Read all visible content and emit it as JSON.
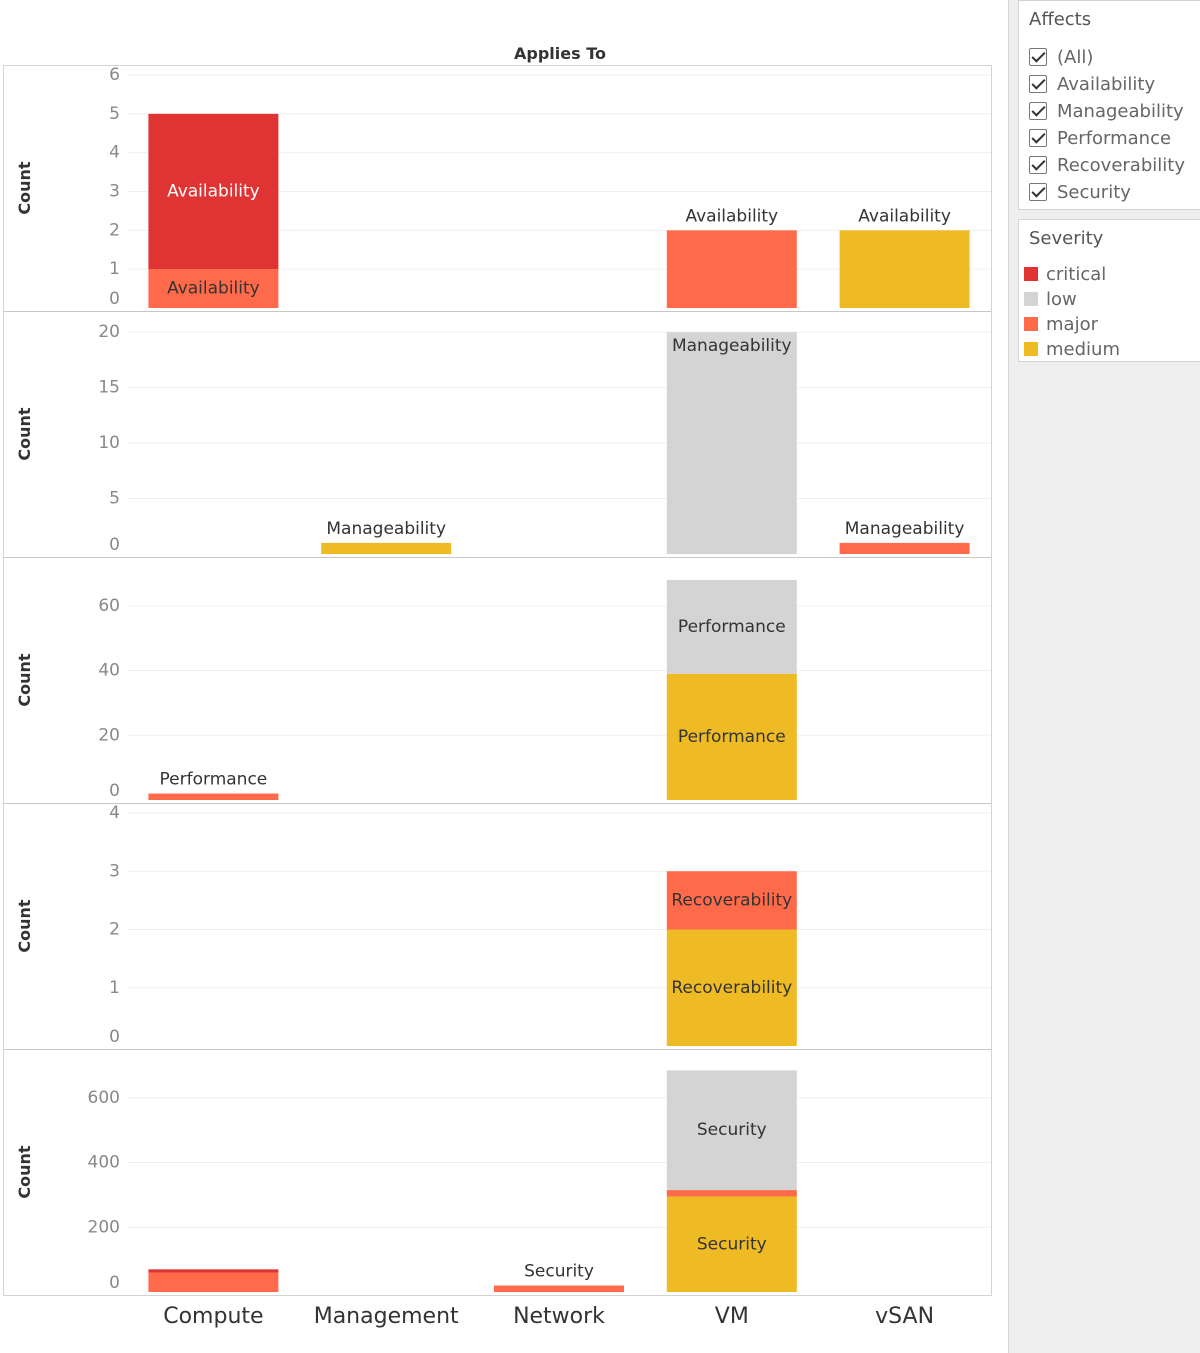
{
  "filter": {
    "title": "Affects",
    "items": [
      {
        "label": "(All)",
        "checked": true
      },
      {
        "label": "Availability",
        "checked": true
      },
      {
        "label": "Manageability",
        "checked": true
      },
      {
        "label": "Performance",
        "checked": true
      },
      {
        "label": "Recoverability",
        "checked": true
      },
      {
        "label": "Security",
        "checked": true
      }
    ]
  },
  "legend": {
    "title": "Severity",
    "items": [
      {
        "label": "critical",
        "color": "#e03434"
      },
      {
        "label": "low",
        "color": "#d4d4d4"
      },
      {
        "label": "major",
        "color": "#ff6b4a"
      },
      {
        "label": "medium",
        "color": "#efbb24"
      }
    ]
  },
  "chart_data": {
    "type": "bar",
    "stacked": true,
    "title": "Applies To",
    "categories": [
      "Compute",
      "Management",
      "Network",
      "VM",
      "vSAN"
    ],
    "ylabel": "Count",
    "grid": true,
    "legend_position": "right",
    "colors": {
      "critical": "#e03434",
      "low": "#d4d4d4",
      "major": "#ff6b4a",
      "medium": "#efbb24"
    },
    "panels": [
      {
        "name": "Availability",
        "ylim": [
          0,
          6
        ],
        "yticks": [
          0,
          1,
          2,
          3,
          4,
          5,
          6
        ],
        "bars": [
          {
            "category": "Compute",
            "segments": [
              {
                "severity": "major",
                "value": 1
              },
              {
                "severity": "critical",
                "value": 4
              }
            ]
          },
          {
            "category": "VM",
            "segments": [
              {
                "severity": "major",
                "value": 2
              }
            ]
          },
          {
            "category": "vSAN",
            "segments": [
              {
                "severity": "medium",
                "value": 2
              }
            ]
          }
        ],
        "labels": [
          {
            "category": "Compute",
            "text": "Availability",
            "placement": "inside",
            "y": 0.5,
            "color": "#333333"
          },
          {
            "category": "Compute",
            "text": "Availability",
            "placement": "inside",
            "y": 3,
            "color": "#ffffff"
          },
          {
            "category": "VM",
            "text": "Availability",
            "placement": "above",
            "y": 2
          },
          {
            "category": "vSAN",
            "text": "Availability",
            "placement": "above",
            "y": 2
          }
        ]
      },
      {
        "name": "Manageability",
        "ylim": [
          0,
          21
        ],
        "yticks": [
          0,
          5,
          10,
          15,
          20
        ],
        "bars": [
          {
            "category": "Management",
            "segments": [
              {
                "severity": "medium",
                "value": 1
              }
            ]
          },
          {
            "category": "VM",
            "segments": [
              {
                "severity": "low",
                "value": 20
              }
            ]
          },
          {
            "category": "vSAN",
            "segments": [
              {
                "severity": "major",
                "value": 1
              }
            ]
          }
        ],
        "labels": [
          {
            "category": "Management",
            "text": "Manageability",
            "placement": "above",
            "y": 1
          },
          {
            "category": "VM",
            "text": "Manageability",
            "placement": "inside-top",
            "y": 20
          },
          {
            "category": "vSAN",
            "text": "Manageability",
            "placement": "above",
            "y": 1
          }
        ]
      },
      {
        "name": "Performance",
        "ylim": [
          0,
          72
        ],
        "yticks": [
          0,
          20,
          40,
          60
        ],
        "bars": [
          {
            "category": "Compute",
            "segments": [
              {
                "severity": "major",
                "value": 2
              }
            ]
          },
          {
            "category": "VM",
            "segments": [
              {
                "severity": "medium",
                "value": 39
              },
              {
                "severity": "low",
                "value": 29
              }
            ]
          }
        ],
        "labels": [
          {
            "category": "Compute",
            "text": "Performance",
            "placement": "above",
            "y": 2
          },
          {
            "category": "VM",
            "text": "Performance",
            "placement": "inside",
            "y": 19.5
          },
          {
            "category": "VM",
            "text": "Performance",
            "placement": "inside",
            "y": 53.5
          }
        ]
      },
      {
        "name": "Recoverability",
        "ylim": [
          0,
          4
        ],
        "yticks": [
          0,
          1,
          2,
          3,
          4
        ],
        "bars": [
          {
            "category": "VM",
            "segments": [
              {
                "severity": "medium",
                "value": 2
              },
              {
                "severity": "major",
                "value": 1
              }
            ]
          }
        ],
        "labels": [
          {
            "category": "VM",
            "text": "Recoverability",
            "placement": "inside",
            "y": 1
          },
          {
            "category": "VM",
            "text": "Recoverability",
            "placement": "inside",
            "y": 2.5
          }
        ]
      },
      {
        "name": "Security",
        "ylim": [
          0,
          720
        ],
        "yticks": [
          0,
          200,
          400,
          600
        ],
        "bars": [
          {
            "category": "Compute",
            "segments": [
              {
                "severity": "major",
                "value": 60
              },
              {
                "severity": "critical",
                "value": 10
              }
            ]
          },
          {
            "category": "Network",
            "segments": [
              {
                "severity": "major",
                "value": 20
              }
            ]
          },
          {
            "category": "VM",
            "segments": [
              {
                "severity": "medium",
                "value": 295
              },
              {
                "severity": "major",
                "value": 20
              },
              {
                "severity": "low",
                "value": 370
              }
            ]
          }
        ],
        "labels": [
          {
            "category": "Network",
            "text": "Security",
            "placement": "above",
            "y": 20
          },
          {
            "category": "VM",
            "text": "Security",
            "placement": "inside",
            "y": 147
          },
          {
            "category": "VM",
            "text": "Security",
            "placement": "inside",
            "y": 500
          }
        ]
      }
    ]
  }
}
